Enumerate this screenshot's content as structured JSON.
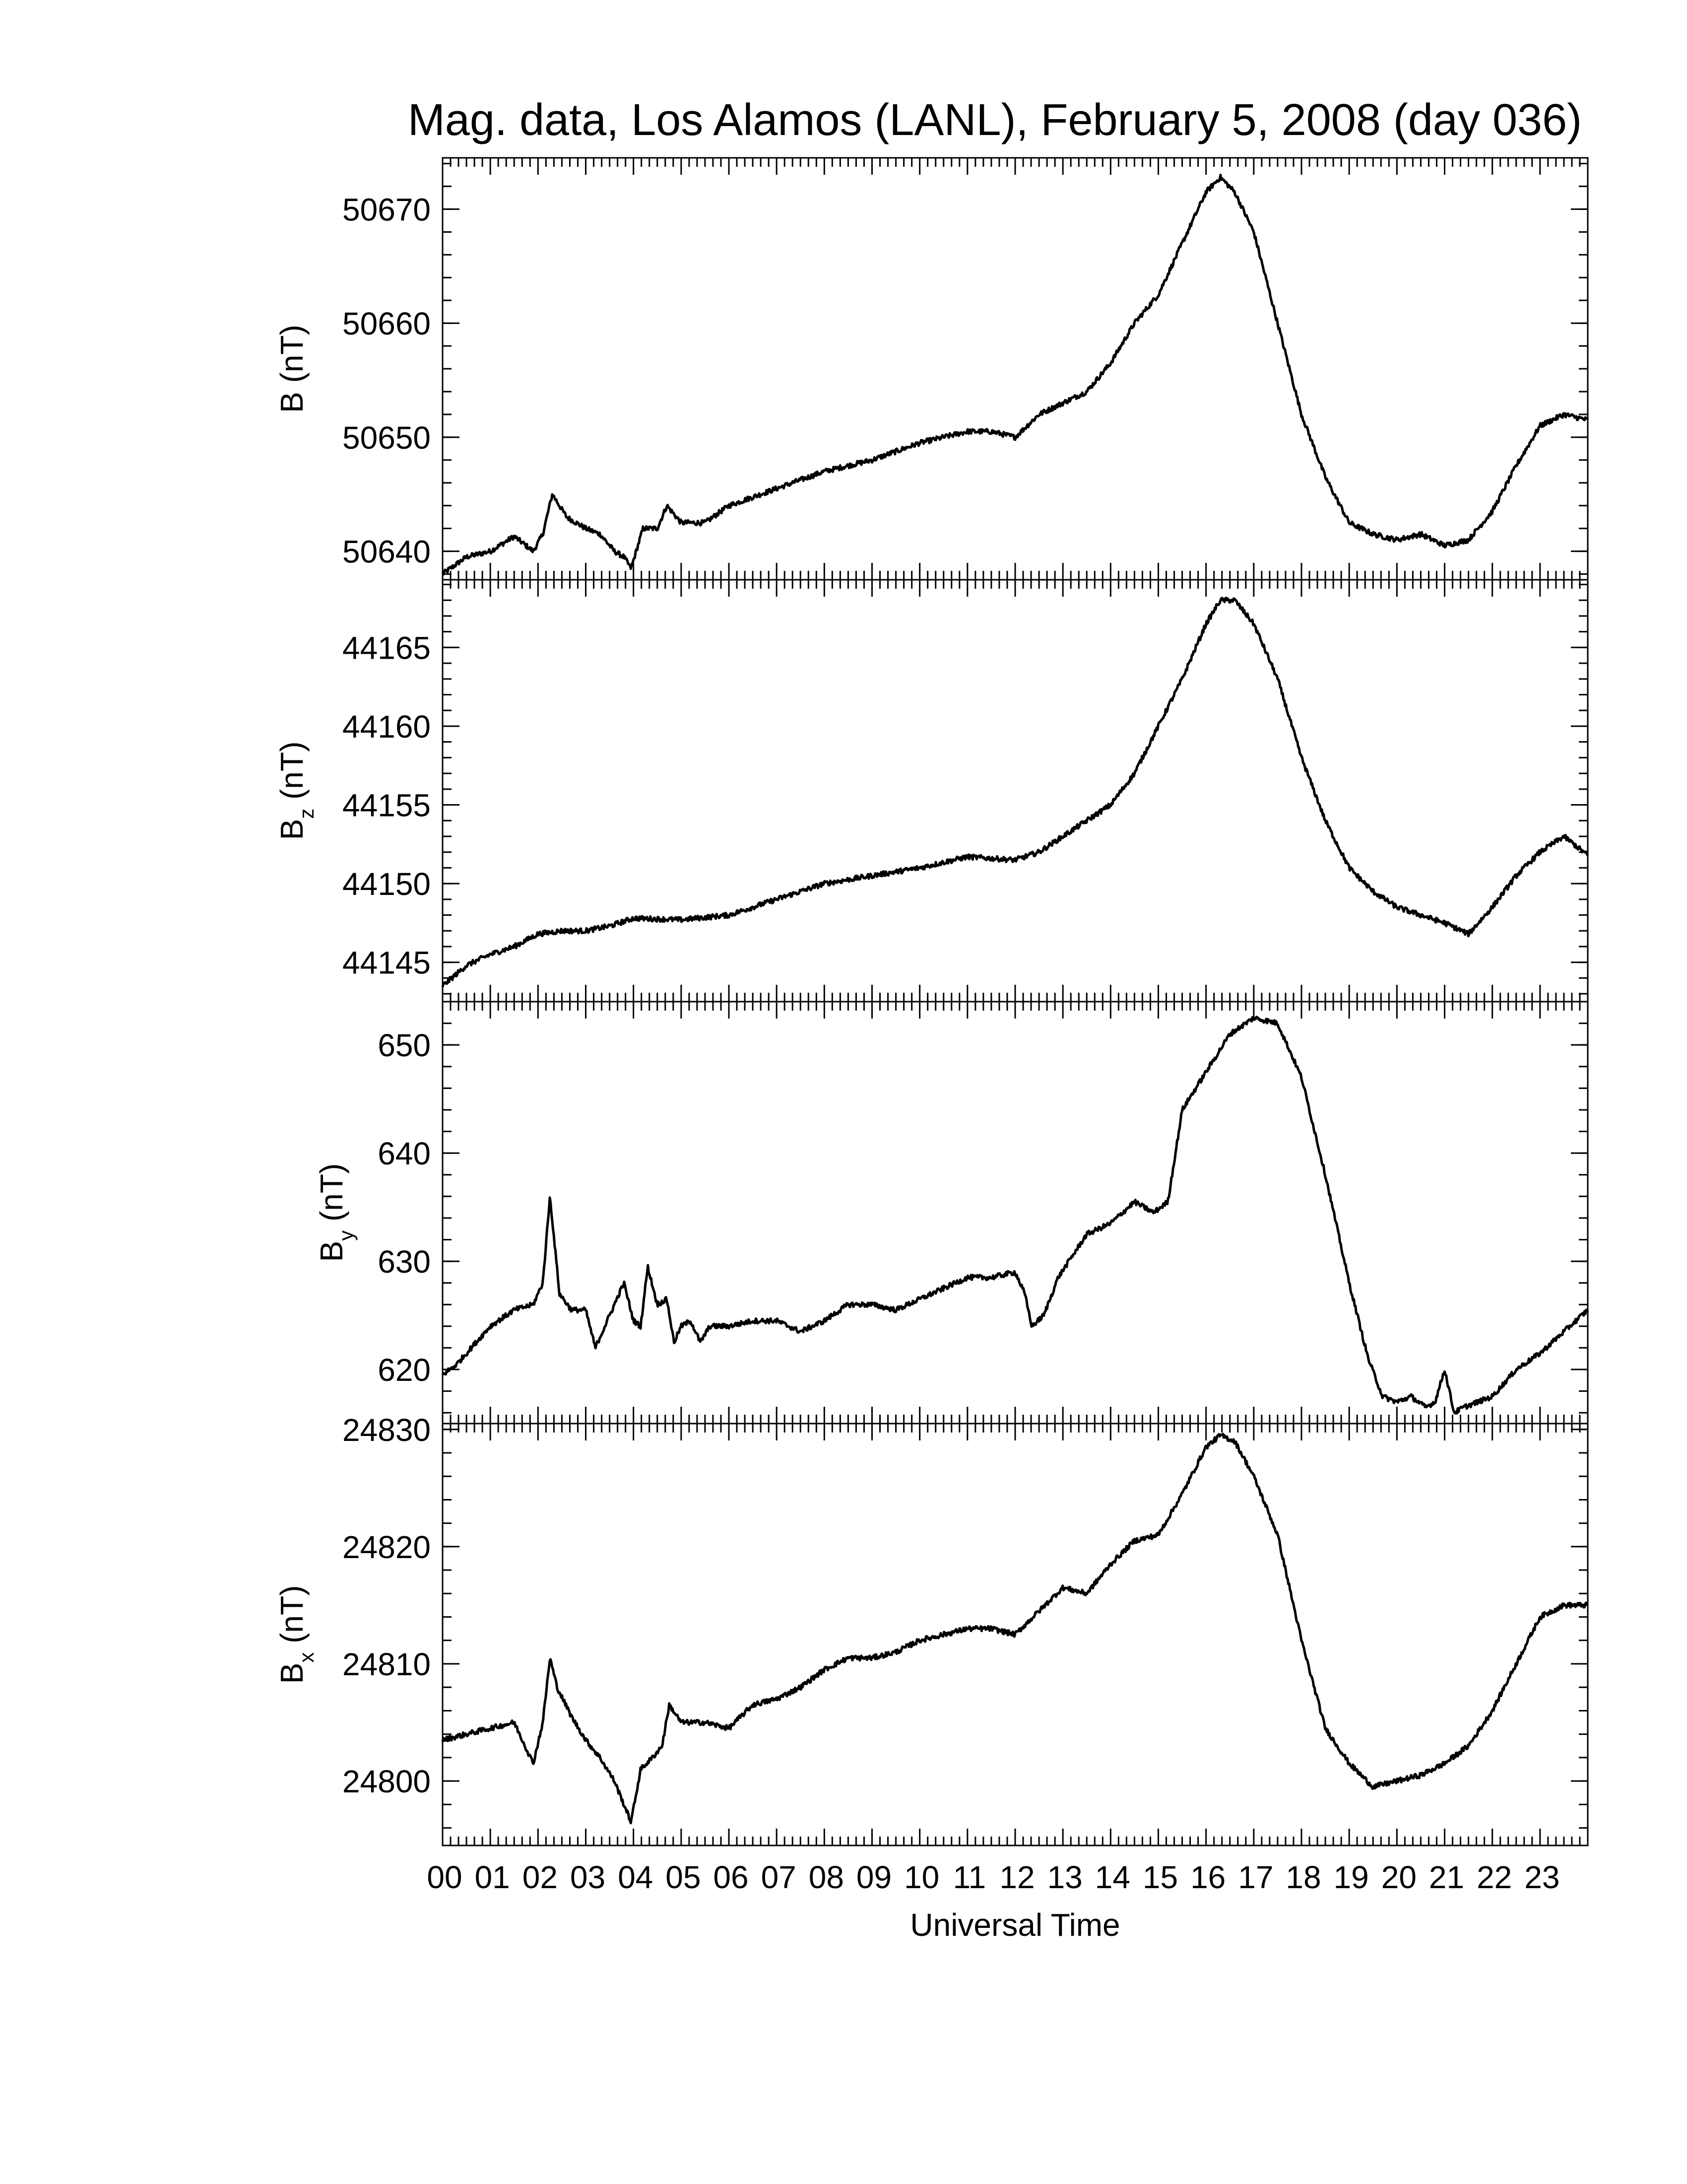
{
  "chart_data": {
    "type": "line",
    "title": "Mag. data, Los Alamos (LANL), February 5, 2008 (day 036)",
    "xlabel": "Universal Time",
    "xlim": [
      0,
      24
    ],
    "x_tick_labels": [
      "00",
      "01",
      "02",
      "03",
      "04",
      "05",
      "06",
      "07",
      "08",
      "09",
      "10",
      "11",
      "12",
      "13",
      "14",
      "15",
      "16",
      "17",
      "18",
      "19",
      "20",
      "21",
      "22",
      "23"
    ],
    "x_minor_ticks_per_hour": 6,
    "panels": [
      {
        "key": "B",
        "ylabel": "B (nT)",
        "ylabel_main": "B",
        "ylabel_sub": "",
        "ylabel_unit": "(nT)",
        "ylim": [
          50637.5,
          50674.5
        ],
        "yticks": [
          50640,
          50650,
          50660,
          50670
        ],
        "ytick_labels": [
          "50640",
          "50650",
          "50660",
          "50670"
        ],
        "x": [
          0,
          0.5,
          1.0,
          1.5,
          1.9,
          2.1,
          2.3,
          2.6,
          3.0,
          3.3,
          3.6,
          3.8,
          3.95,
          4.2,
          4.5,
          4.7,
          5.0,
          5.5,
          6.0,
          7.0,
          8.0,
          8.5,
          9.0,
          10.0,
          10.5,
          11.0,
          11.5,
          12.0,
          12.5,
          13.0,
          13.5,
          14.0,
          14.5,
          15.0,
          15.5,
          16.0,
          16.3,
          16.6,
          17.0,
          17.5,
          18.0,
          18.5,
          19.0,
          19.5,
          20.0,
          20.5,
          21.0,
          21.5,
          22.0,
          22.5,
          23.0,
          23.5,
          24.0
        ],
        "y": [
          50638.0,
          50639.5,
          50640.0,
          50641.3,
          50640.0,
          50641.5,
          50645.0,
          50643.0,
          50642.0,
          50641.5,
          50640.0,
          50639.5,
          50638.5,
          50642.0,
          50642.0,
          50644.0,
          50642.5,
          50642.5,
          50644.0,
          50645.5,
          50647.0,
          50647.5,
          50648.0,
          50649.5,
          50650.0,
          50650.5,
          50650.5,
          50650.0,
          50652.0,
          50653.0,
          50654.0,
          50656.5,
          50660.0,
          50662.5,
          50667.0,
          50671.5,
          50672.8,
          50671.5,
          50668.0,
          50660.0,
          50652.0,
          50646.5,
          50642.5,
          50641.5,
          50641.0,
          50641.5,
          50640.5,
          50641.0,
          50643.5,
          50647.5,
          50651.0,
          50652.0,
          50651.5
        ]
      },
      {
        "key": "Bz",
        "ylabel": "Bz (nT)",
        "ylabel_main": "B",
        "ylabel_sub": "z",
        "ylabel_unit": "(nT)",
        "ylim": [
          44142.5,
          44169.3
        ],
        "yticks": [
          44145,
          44150,
          44155,
          44160,
          44165
        ],
        "ytick_labels": [
          "44145",
          "44150",
          "44155",
          "44160",
          "44165"
        ],
        "x": [
          0,
          0.5,
          1.0,
          1.5,
          2.0,
          2.5,
          3.0,
          3.5,
          4.0,
          5.0,
          6.0,
          7.0,
          8.0,
          9.0,
          10.0,
          11.0,
          12.0,
          12.5,
          13.0,
          13.5,
          14.0,
          14.5,
          15.0,
          15.5,
          16.0,
          16.3,
          16.6,
          17.0,
          17.5,
          18.0,
          18.5,
          19.0,
          19.5,
          20.0,
          20.5,
          21.0,
          21.5,
          22.0,
          22.5,
          23.0,
          23.5,
          24.0
        ],
        "y": [
          44143.5,
          44144.8,
          44145.5,
          44146.0,
          44146.8,
          44147.0,
          44147.0,
          44147.3,
          44147.8,
          44147.7,
          44148.0,
          44149.0,
          44150.0,
          44150.5,
          44151.0,
          44151.7,
          44151.5,
          44152.0,
          44153.0,
          44154.0,
          44155.0,
          44157.0,
          44160.0,
          44163.0,
          44166.5,
          44168.0,
          44168.0,
          44166.5,
          44163.0,
          44158.0,
          44154.0,
          44151.0,
          44149.5,
          44148.5,
          44148.0,
          44147.5,
          44146.8,
          44148.5,
          44150.5,
          44152.0,
          44153.0,
          44151.8
        ]
      },
      {
        "key": "By",
        "ylabel": "By (nT)",
        "ylabel_main": "B",
        "ylabel_sub": "y",
        "ylabel_unit": "(nT)",
        "ylim": [
          615.0,
          654.0
        ],
        "yticks": [
          620,
          630,
          640,
          650
        ],
        "ytick_labels": [
          "620",
          "630",
          "640",
          "650"
        ],
        "x": [
          0,
          0.3,
          0.6,
          1.0,
          1.5,
          1.9,
          2.1,
          2.25,
          2.45,
          2.7,
          3.0,
          3.2,
          3.5,
          3.8,
          4.0,
          4.15,
          4.3,
          4.5,
          4.7,
          4.85,
          5.0,
          5.2,
          5.4,
          5.6,
          6.0,
          6.5,
          7.0,
          7.5,
          8.0,
          8.5,
          9.0,
          9.5,
          10.0,
          10.5,
          11.0,
          11.5,
          12.0,
          12.2,
          12.35,
          12.6,
          12.9,
          13.2,
          13.5,
          14.0,
          14.5,
          14.9,
          15.2,
          15.5,
          16.0,
          16.5,
          17.0,
          17.5,
          18.0,
          18.5,
          19.0,
          19.4,
          19.7,
          20.0,
          20.3,
          20.6,
          20.8,
          21.0,
          21.2,
          21.4,
          21.7,
          22.0,
          22.5,
          23.0,
          23.5,
          24.0
        ],
        "y": [
          619.5,
          620.5,
          622.0,
          624.0,
          625.5,
          626.0,
          628.0,
          636.0,
          627.0,
          625.5,
          625.5,
          622.0,
          625.0,
          628.0,
          624.5,
          624.0,
          629.5,
          626.0,
          626.5,
          622.5,
          624.0,
          624.5,
          622.5,
          624.0,
          624.0,
          624.5,
          624.5,
          623.5,
          624.5,
          626.0,
          626.0,
          625.5,
          626.5,
          627.5,
          628.5,
          628.5,
          629.0,
          627.0,
          624.0,
          625.0,
          628.5,
          630.5,
          632.5,
          633.5,
          635.5,
          634.5,
          635.5,
          644.0,
          647.5,
          651.0,
          652.5,
          652.0,
          647.0,
          638.0,
          628.0,
          621.0,
          617.5,
          617.0,
          617.5,
          616.5,
          617.0,
          620.0,
          616.0,
          616.5,
          617.0,
          617.5,
          620.0,
          621.5,
          623.5,
          625.5
        ]
      },
      {
        "key": "Bx",
        "ylabel": "Bx (nT)",
        "ylabel_main": "B",
        "ylabel_sub": "x",
        "ylabel_unit": "(nT)",
        "ylim": [
          24794.5,
          24830.5
        ],
        "yticks": [
          24800,
          24810,
          24820,
          24830
        ],
        "ytick_labels": [
          "24800",
          "24810",
          "24820",
          "24830"
        ],
        "x": [
          0,
          0.5,
          1.0,
          1.5,
          1.9,
          2.1,
          2.25,
          2.4,
          2.7,
          3.0,
          3.3,
          3.6,
          3.8,
          3.95,
          4.15,
          4.4,
          4.6,
          4.75,
          5.0,
          5.5,
          6.0,
          6.5,
          7.0,
          7.5,
          8.0,
          8.5,
          9.0,
          9.5,
          10.0,
          10.5,
          11.0,
          11.5,
          12.0,
          12.5,
          13.0,
          13.5,
          14.0,
          14.5,
          15.0,
          15.5,
          16.0,
          16.3,
          16.6,
          17.0,
          17.5,
          18.0,
          18.5,
          19.0,
          19.5,
          20.0,
          20.5,
          21.0,
          21.5,
          22.0,
          22.5,
          23.0,
          23.5,
          24.0
        ],
        "y": [
          24803.5,
          24804.0,
          24804.5,
          24805.0,
          24801.5,
          24805.0,
          24810.5,
          24808.0,
          24805.5,
          24803.5,
          24802.0,
          24800.0,
          24798.0,
          24796.5,
          24801.0,
          24802.0,
          24803.0,
          24806.5,
          24805.0,
          24805.0,
          24804.5,
          24806.5,
          24807.0,
          24808.0,
          24809.5,
          24810.5,
          24810.5,
          24811.0,
          24812.0,
          24812.5,
          24813.0,
          24813.0,
          24812.5,
          24814.5,
          24816.5,
          24816.0,
          24818.5,
          24820.5,
          24821.0,
          24824.5,
          24828.5,
          24829.5,
          24829.0,
          24826.0,
          24821.0,
          24812.0,
          24804.5,
          24801.5,
          24799.5,
          24800.0,
          24800.5,
          24801.5,
          24803.0,
          24806.0,
          24810.0,
          24814.0,
          24815.0,
          24815.0
        ]
      }
    ]
  }
}
